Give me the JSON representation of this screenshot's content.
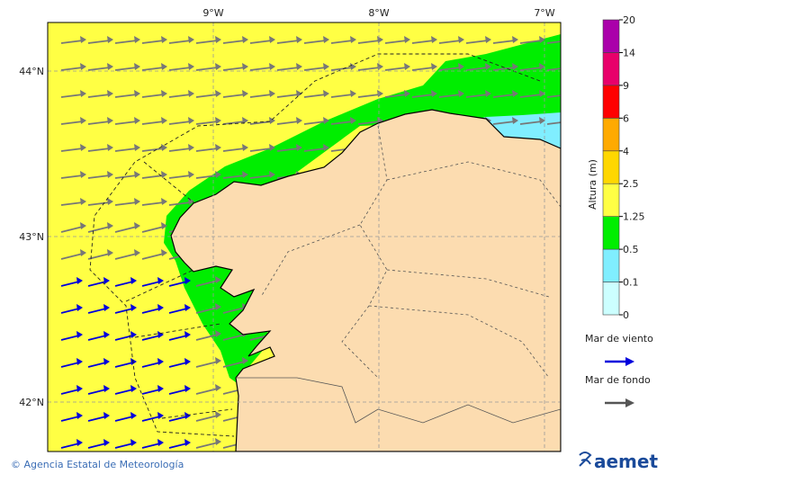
{
  "map": {
    "lon_labels": [
      "9°W",
      "8°W",
      "7°W"
    ],
    "lat_labels": [
      "44°N",
      "43°N",
      "42°N"
    ]
  },
  "colorbar": {
    "title": "Altura (m)",
    "levels": [
      0,
      0.1,
      0.5,
      1.25,
      2.5,
      4,
      6,
      9,
      14,
      20
    ],
    "colors": [
      "#ccffff",
      "#80eeff",
      "#00ee00",
      "#ffff44",
      "#ffd700",
      "#ffaa00",
      "#ff0000",
      "#e8006a",
      "#aa00aa"
    ]
  },
  "legend": {
    "items": [
      {
        "label": "Mar de viento",
        "color": "#0000dd"
      },
      {
        "label": "Mar de fondo",
        "color": "#555555"
      }
    ]
  },
  "footer": {
    "credit": "© Agencia Estatal de Meteorología",
    "logo": "aemet"
  }
}
